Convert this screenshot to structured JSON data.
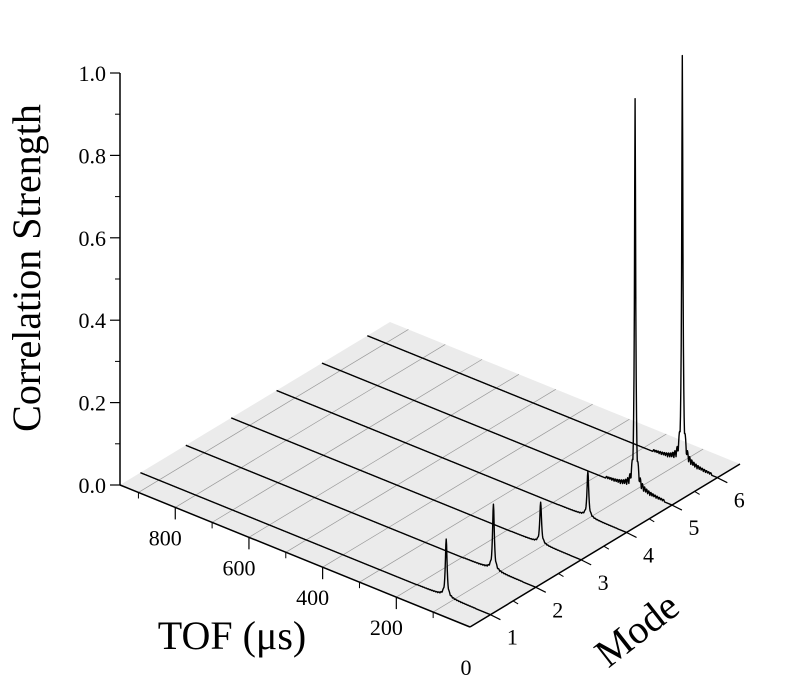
{
  "chart_data": {
    "type": "waterfall",
    "title": "",
    "ylabel": "Correlation Strength",
    "xlabel": "TOF (μs)",
    "zlabel": "Mode",
    "yticks": [
      "0.0",
      "0.2",
      "0.4",
      "0.6",
      "0.8",
      "1.0"
    ],
    "ytick_values": [
      0.0,
      0.2,
      0.4,
      0.6,
      0.8,
      1.0
    ],
    "ylim": [
      0,
      1
    ],
    "xticks": [
      "200",
      "400",
      "600",
      "800"
    ],
    "xtick_values": [
      200,
      400,
      600,
      800
    ],
    "xlim": [
      0,
      950
    ],
    "origin_label": "0",
    "zticks": [
      "1",
      "2",
      "3",
      "4",
      "5",
      "6"
    ],
    "zlim": [
      1,
      6
    ],
    "series": [
      {
        "name": "1",
        "peak_tof": 120,
        "peak_value": 0.14,
        "width": 6
      },
      {
        "name": "2",
        "peak_tof": 115,
        "peak_value": 0.16,
        "width": 6
      },
      {
        "name": "3",
        "peak_tof": 110,
        "peak_value": 0.1,
        "width": 6
      },
      {
        "name": "4",
        "peak_tof": 105,
        "peak_value": 0.11,
        "width": 6
      },
      {
        "name": "5",
        "peak_tof": 100,
        "peak_value": 0.95,
        "width": 4
      },
      {
        "name": "6",
        "peak_tof": 95,
        "peak_value": 0.99,
        "width": 4
      }
    ],
    "grid": true
  }
}
